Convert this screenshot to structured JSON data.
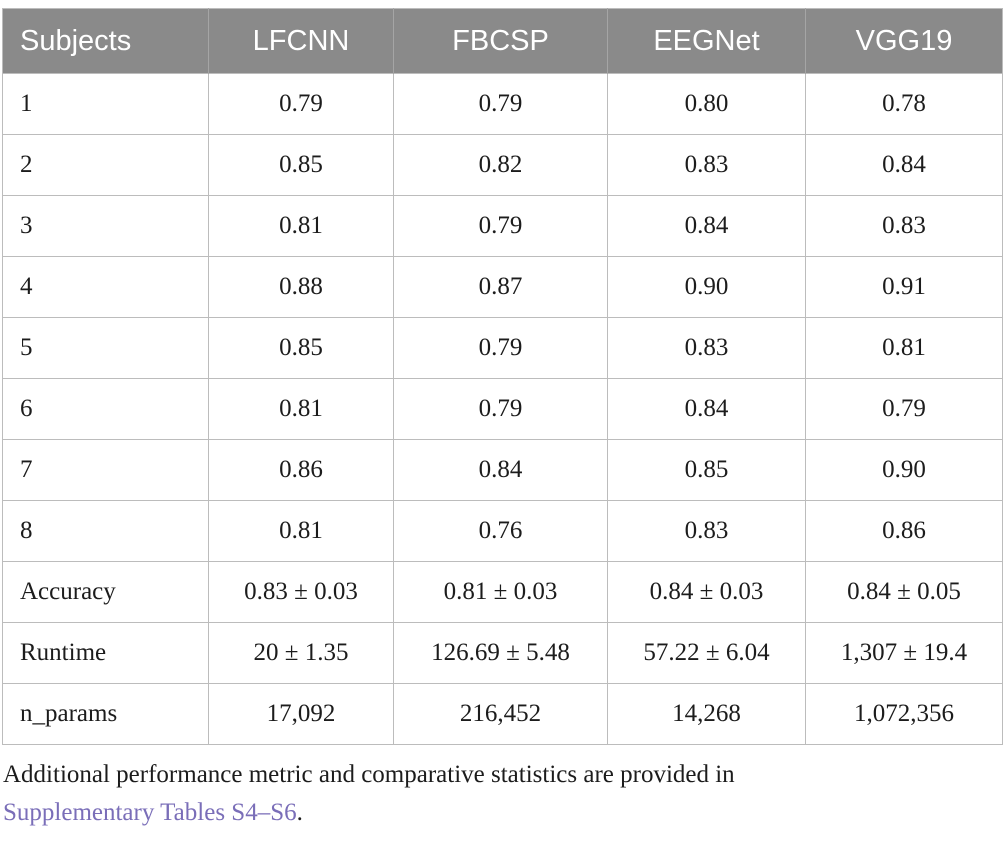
{
  "table": {
    "columns": [
      "Subjects",
      "LFCNN",
      "FBCSP",
      "EEGNet",
      "VGG19"
    ],
    "rows": [
      [
        "1",
        "0.79",
        "0.79",
        "0.80",
        "0.78"
      ],
      [
        "2",
        "0.85",
        "0.82",
        "0.83",
        "0.84"
      ],
      [
        "3",
        "0.81",
        "0.79",
        "0.84",
        "0.83"
      ],
      [
        "4",
        "0.88",
        "0.87",
        "0.90",
        "0.91"
      ],
      [
        "5",
        "0.85",
        "0.79",
        "0.83",
        "0.81"
      ],
      [
        "6",
        "0.81",
        "0.79",
        "0.84",
        "0.79"
      ],
      [
        "7",
        "0.86",
        "0.84",
        "0.85",
        "0.90"
      ],
      [
        "8",
        "0.81",
        "0.76",
        "0.83",
        "0.86"
      ],
      [
        "Accuracy",
        "0.83 ± 0.03",
        "0.81 ± 0.03",
        "0.84 ± 0.03",
        "0.84 ± 0.05"
      ],
      [
        "Runtime",
        "20 ± 1.35",
        "126.69 ± 5.48",
        "57.22 ± 6.04",
        "1,307 ± 19.4"
      ],
      [
        "n_params",
        "17,092",
        "216,452",
        "14,268",
        "1,072,356"
      ]
    ]
  },
  "footnote": {
    "line1": "Additional performance metric and comparative statistics are provided in",
    "link_label": "Supplementary Tables S4–S6",
    "suffix": "."
  },
  "colors": {
    "header_bg": "#8a8a8a",
    "header_text": "#ffffff",
    "header_divider": "#a5a5a5",
    "border": "#bcbcbc",
    "body_text": "#1c1c1c",
    "link": "#7a6eb8"
  }
}
